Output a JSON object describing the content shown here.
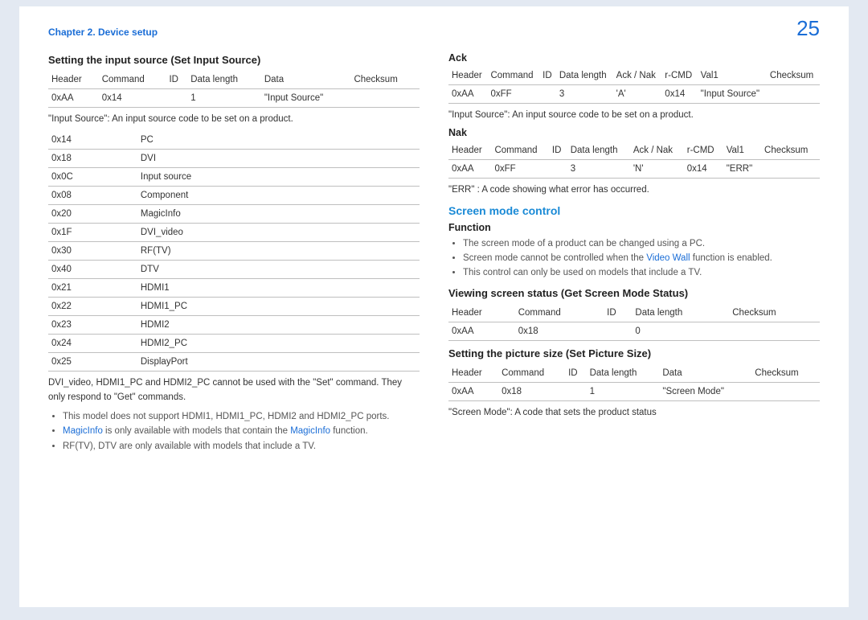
{
  "header": {
    "chapter": "Chapter 2. Device setup",
    "page_number": "25"
  },
  "left": {
    "title": "Setting the input source (Set Input Source)",
    "cmd_table": {
      "headers": [
        "Header",
        "Command",
        "ID",
        "Data length",
        "Data",
        "Checksum"
      ],
      "rows": [
        [
          "0xAA",
          "0x14",
          "",
          "1",
          "\"Input Source\"",
          ""
        ]
      ]
    },
    "note1": "\"Input Source\": An input source code to be set on a product.",
    "codes_table": {
      "rows": [
        [
          "0x14",
          "PC"
        ],
        [
          "0x18",
          "DVI"
        ],
        [
          "0x0C",
          "Input source"
        ],
        [
          "0x08",
          "Component"
        ],
        [
          "0x20",
          "MagicInfo"
        ],
        [
          "0x1F",
          "DVI_video"
        ],
        [
          "0x30",
          "RF(TV)"
        ],
        [
          "0x40",
          "DTV"
        ],
        [
          "0x21",
          "HDMI1"
        ],
        [
          "0x22",
          "HDMI1_PC"
        ],
        [
          "0x23",
          "HDMI2"
        ],
        [
          "0x24",
          "HDMI2_PC"
        ],
        [
          "0x25",
          "DisplayPort"
        ]
      ]
    },
    "note2": "DVI_video, HDMI1_PC and HDMI2_PC cannot be used with the \"Set\" command. They only respond to \"Get\" commands.",
    "bullets": [
      {
        "text": "This model does not support HDMI1, HDMI1_PC, HDMI2 and HDMI2_PC ports."
      },
      {
        "prefix": "",
        "link1": "MagicInfo",
        "mid": " is only available with models that contain the ",
        "link2": "MagicInfo",
        "suffix": " function."
      },
      {
        "text": "RF(TV), DTV are only available with models that include a TV."
      }
    ]
  },
  "right": {
    "ack": {
      "title": "Ack",
      "headers": [
        "Header",
        "Command",
        "ID",
        "Data length",
        "Ack / Nak",
        "r-CMD",
        "Val1",
        "Checksum"
      ],
      "rows": [
        [
          "0xAA",
          "0xFF",
          "",
          "3",
          "'A'",
          "0x14",
          "\"Input Source\"",
          ""
        ]
      ],
      "note": "\"Input Source\": An input source code to be set on a product."
    },
    "nak": {
      "title": "Nak",
      "headers": [
        "Header",
        "Command",
        "ID",
        "Data length",
        "Ack / Nak",
        "r-CMD",
        "Val1",
        "Checksum"
      ],
      "rows": [
        [
          "0xAA",
          "0xFF",
          "",
          "3",
          "'N'",
          "0x14",
          "\"ERR\"",
          ""
        ]
      ],
      "note": "\"ERR\" : A code showing what error has occurred."
    },
    "screen_mode": {
      "title": "Screen mode control",
      "function_label": "Function",
      "bullets": [
        {
          "text": "The screen mode of a product can be changed using a PC."
        },
        {
          "prefix": "Screen mode cannot be controlled when the ",
          "link": "Video Wall",
          "suffix": " function is enabled."
        },
        {
          "text": "This control can only be used on models that include a TV."
        }
      ]
    },
    "viewing": {
      "title": "Viewing screen status (Get Screen Mode Status)",
      "headers": [
        "Header",
        "Command",
        "ID",
        "Data length",
        "Checksum"
      ],
      "rows": [
        [
          "0xAA",
          "0x18",
          "",
          "0",
          ""
        ]
      ]
    },
    "setting_pic": {
      "title": "Setting the picture size (Set Picture Size)",
      "headers": [
        "Header",
        "Command",
        "ID",
        "Data length",
        "Data",
        "Checksum"
      ],
      "rows": [
        [
          "0xAA",
          "0x18",
          "",
          "1",
          "\"Screen Mode\"",
          ""
        ]
      ],
      "note": "\"Screen Mode\": A code that sets the product status"
    }
  },
  "colors": {
    "accent": "#1a6dd6",
    "heading_blue": "#1a8ad6",
    "border": "#bfbfbf",
    "background": "#e3e9f2",
    "text": "#333333",
    "muted": "#555555"
  }
}
